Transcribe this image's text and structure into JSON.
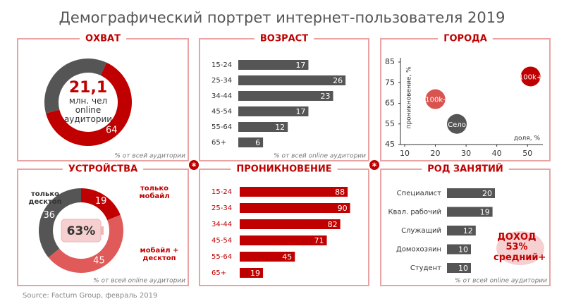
{
  "title": "Демографический портрет интернет-пользователя 2019",
  "source": "Source: Factum Group, февраль 2019",
  "badge": "*",
  "chart_data": [
    {
      "type": "donut",
      "title": "ОХВАТ",
      "values": [
        64,
        36
      ],
      "value_labels": [
        "64",
        null
      ],
      "colors": [
        "#c00000",
        "#555555"
      ],
      "center_value": "21,1",
      "center_text": "млн. чел online аудитории",
      "note": "% от всей аудитории"
    },
    {
      "type": "hbar",
      "title": "ВОЗРАСТ",
      "categories": [
        "15-24",
        "25-34",
        "34-44",
        "45-54",
        "55-64",
        "65+"
      ],
      "values": [
        17,
        26,
        23,
        17,
        12,
        6
      ],
      "color": "#555555",
      "note": "% от всей online аудитории"
    },
    {
      "type": "bubble",
      "title": "ГОРОДА",
      "xlabel": "доля, %",
      "ylabel": "проникновение, %",
      "xlim": [
        10,
        55
      ],
      "xticks": [
        10,
        20,
        30,
        40,
        50
      ],
      "ylim": [
        45,
        85
      ],
      "yticks": [
        45,
        55,
        65,
        75,
        85
      ],
      "points": [
        {
          "name": "100k+",
          "x": 51,
          "y": 78,
          "color": "#c00000"
        },
        {
          "name": "100k-",
          "x": 20,
          "y": 67,
          "color": "#d9534f"
        },
        {
          "name": "Село",
          "x": 27,
          "y": 55,
          "color": "#555555"
        }
      ]
    },
    {
      "type": "donut",
      "title": "УСТРОЙСТВА",
      "categories": [
        "только мобайл",
        "мобайл + десктоп",
        "только десктоп"
      ],
      "values": [
        19,
        45,
        36
      ],
      "colors": [
        "#c00000",
        "#e05a5a",
        "#555555"
      ],
      "center_value": "63%",
      "note": "% от всей online аудитории"
    },
    {
      "type": "hbar",
      "title": "ПРОНИКНОВЕНИЕ",
      "categories": [
        "15-24",
        "25-34",
        "34-44",
        "45-54",
        "55-64",
        "65+"
      ],
      "values": [
        88,
        90,
        82,
        71,
        45,
        19
      ],
      "color": "#c00000"
    },
    {
      "type": "hbar",
      "title": "РОД ЗАНЯТИЙ",
      "categories": [
        "Специалист",
        "Квал. рабочий",
        "Служащий",
        "Домохозяин",
        "Студент"
      ],
      "values": [
        20,
        19,
        12,
        10,
        10
      ],
      "color": "#555555",
      "annotation": "ДОХОД 53% средний+",
      "note": "% от всей online аудитории"
    }
  ]
}
